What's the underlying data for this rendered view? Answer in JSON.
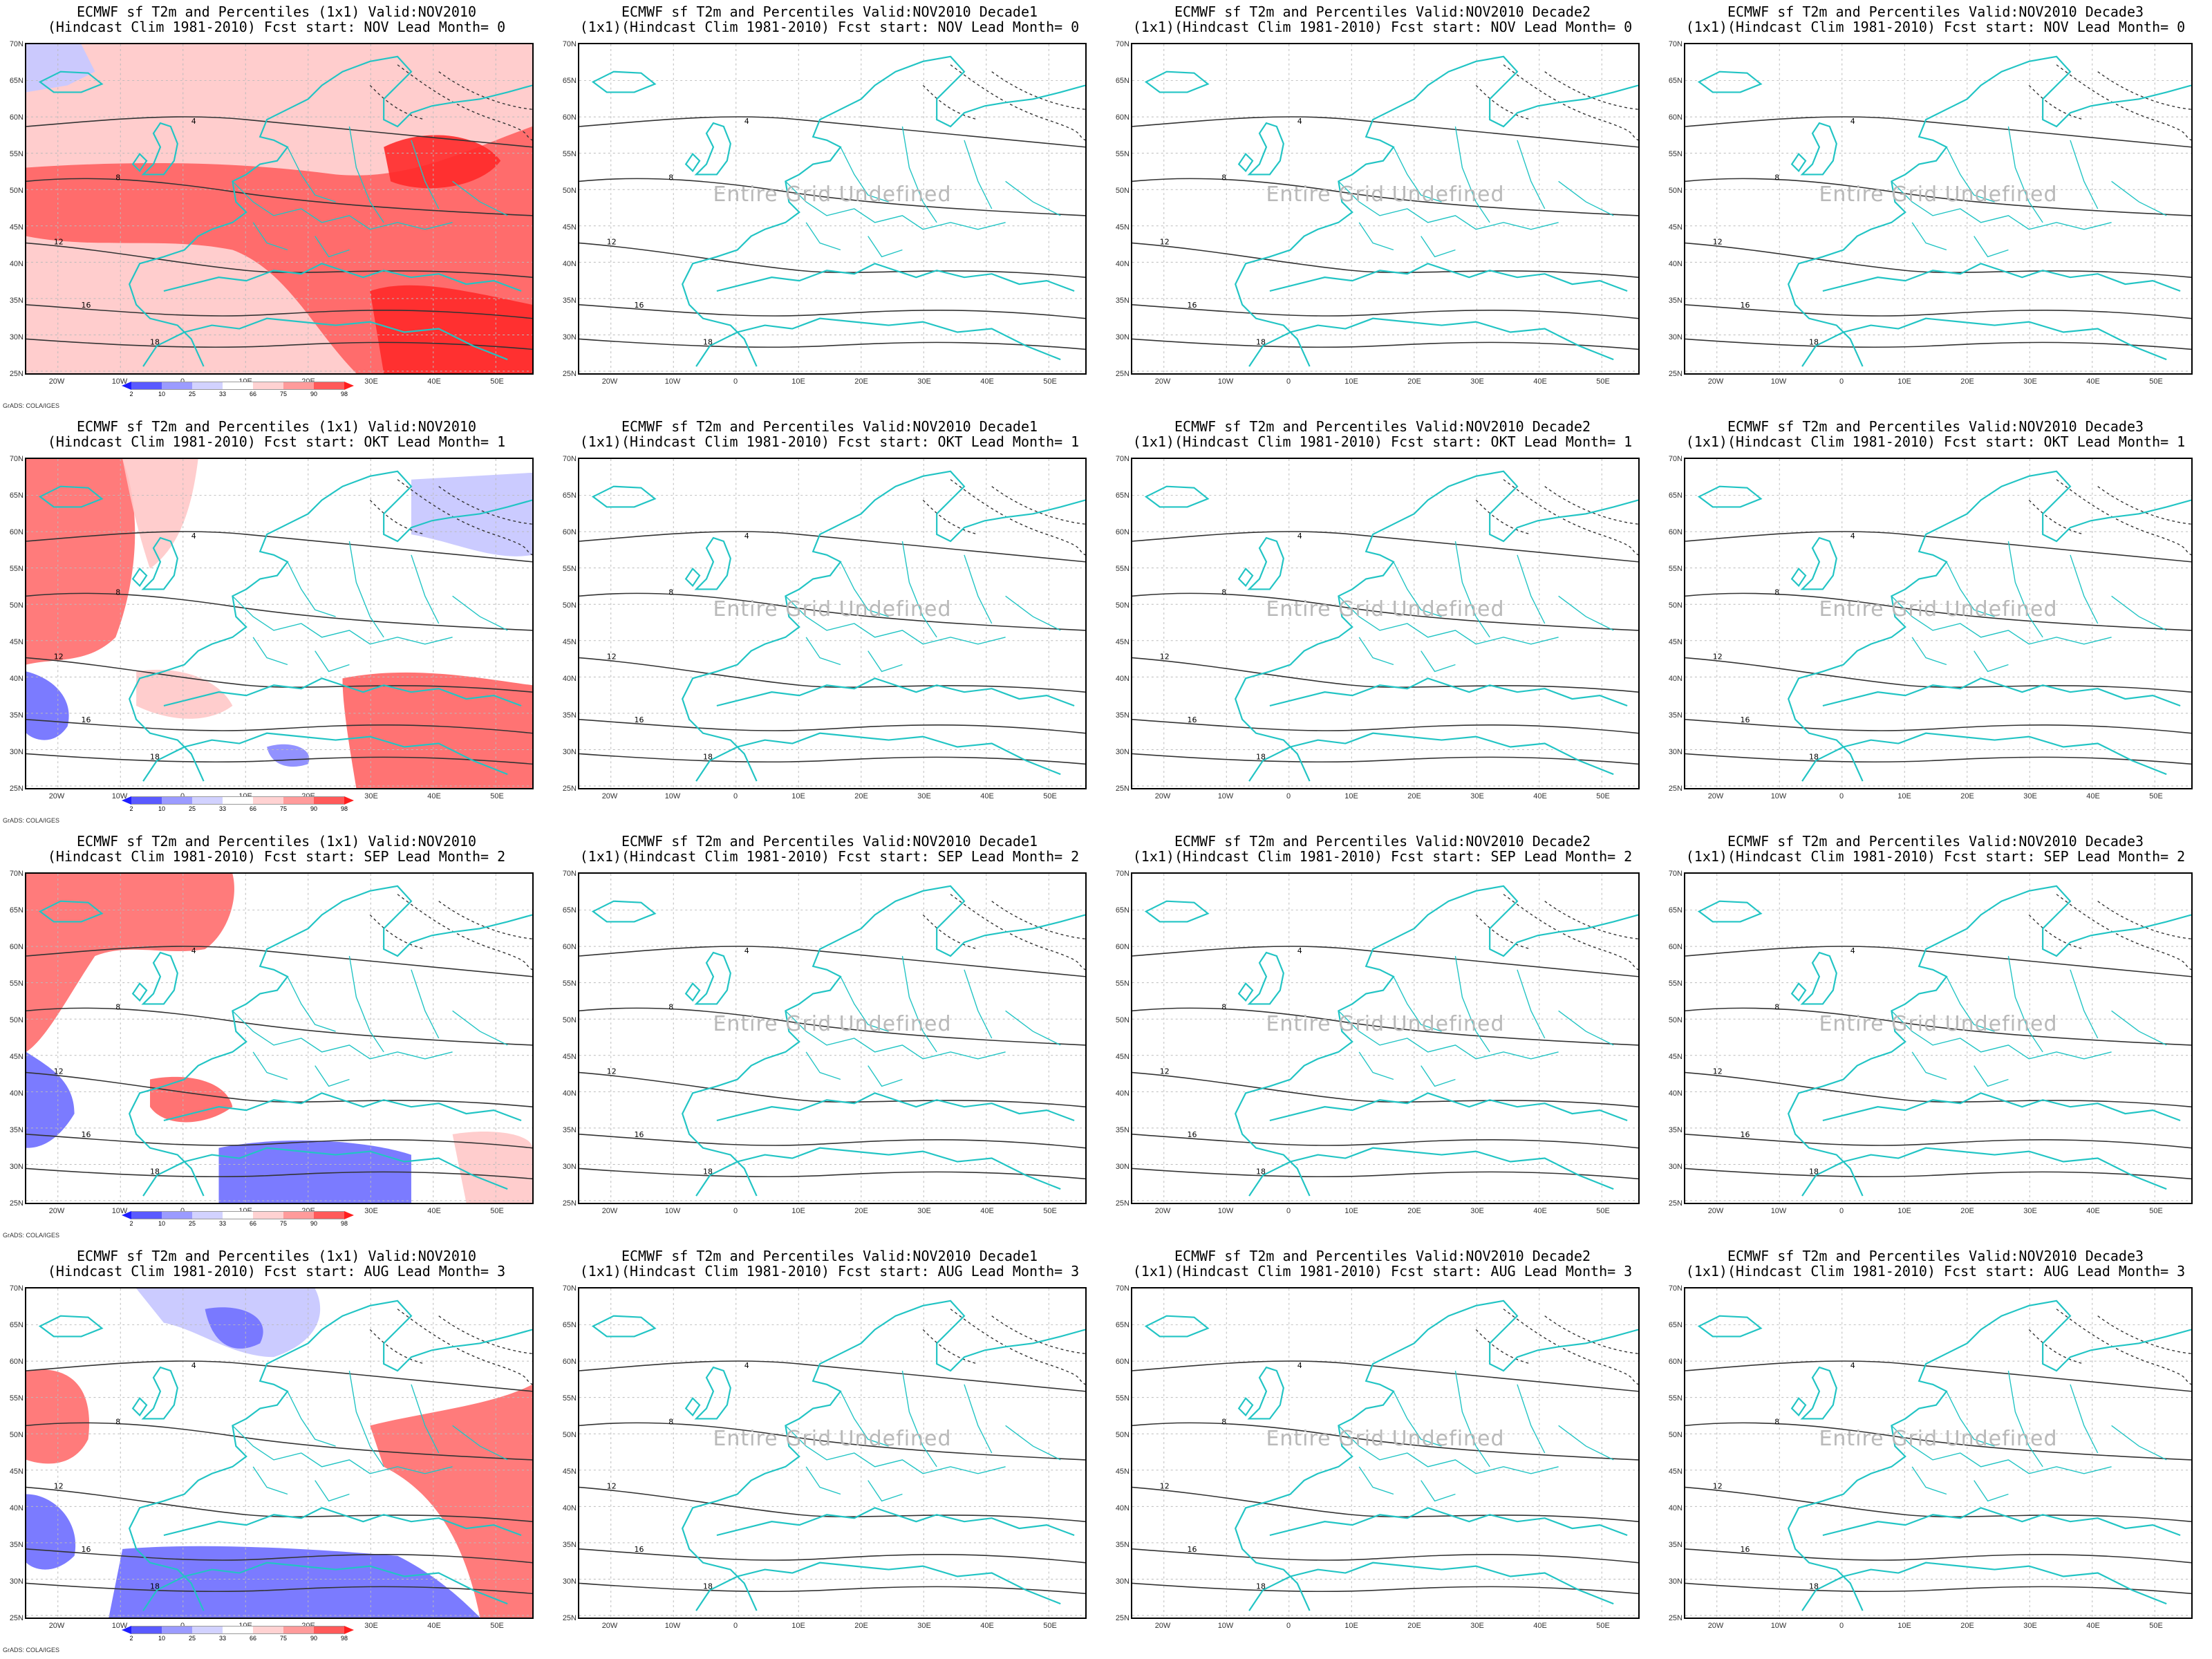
{
  "panel_titles": [
    [
      "ECMWF sf T2m and Percentiles (1x1) Valid:NOV2010",
      "(Hindcast Clim 1981-2010) Fcst start: NOV  Lead Month= 0"
    ],
    [
      "ECMWF sf T2m and Percentiles Valid:NOV2010 Decade1",
      "(1x1)(Hindcast Clim 1981-2010) Fcst start: NOV  Lead Month= 0"
    ],
    [
      "ECMWF sf T2m and Percentiles Valid:NOV2010 Decade2",
      "(1x1)(Hindcast Clim 1981-2010) Fcst start: NOV  Lead Month= 0"
    ],
    [
      "ECMWF sf T2m and Percentiles Valid:NOV2010 Decade3",
      "(1x1)(Hindcast Clim 1981-2010) Fcst start: NOV  Lead Month= 0"
    ],
    [
      "ECMWF sf T2m and Percentiles (1x1) Valid:NOV2010",
      "(Hindcast Clim 1981-2010) Fcst start: OKT  Lead Month= 1"
    ],
    [
      "ECMWF sf T2m and Percentiles Valid:NOV2010 Decade1",
      "(1x1)(Hindcast Clim 1981-2010) Fcst start: OKT  Lead Month= 1"
    ],
    [
      "ECMWF sf T2m and Percentiles Valid:NOV2010 Decade2",
      "(1x1)(Hindcast Clim 1981-2010) Fcst start: OKT  Lead Month= 1"
    ],
    [
      "ECMWF sf T2m and Percentiles Valid:NOV2010 Decade3",
      "(1x1)(Hindcast Clim 1981-2010) Fcst start: OKT  Lead Month= 1"
    ],
    [
      "ECMWF sf T2m and Percentiles (1x1) Valid:NOV2010",
      "(Hindcast Clim 1981-2010) Fcst start: SEP  Lead Month= 2"
    ],
    [
      "ECMWF sf T2m and Percentiles Valid:NOV2010 Decade1",
      "(1x1)(Hindcast Clim 1981-2010) Fcst start: SEP  Lead Month= 2"
    ],
    [
      "ECMWF sf T2m and Percentiles Valid:NOV2010 Decade2",
      "(1x1)(Hindcast Clim 1981-2010) Fcst start: SEP  Lead Month= 2"
    ],
    [
      "ECMWF sf T2m and Percentiles Valid:NOV2010 Decade3",
      "(1x1)(Hindcast Clim 1981-2010) Fcst start: SEP  Lead Month= 2"
    ],
    [
      "ECMWF sf T2m and Percentiles (1x1) Valid:NOV2010",
      "(Hindcast Clim 1981-2010) Fcst start: AUG  Lead Month= 3"
    ],
    [
      "ECMWF sf T2m and Percentiles Valid:NOV2010 Decade1",
      "(1x1)(Hindcast Clim 1981-2010) Fcst start: AUG  Lead Month= 3"
    ],
    [
      "ECMWF sf T2m and Percentiles Valid:NOV2010 Decade2",
      "(1x1)(Hindcast Clim 1981-2010) Fcst start: AUG  Lead Month= 3"
    ],
    [
      "ECMWF sf T2m and Percentiles Valid:NOV2010 Decade3",
      "(1x1)(Hindcast Clim 1981-2010) Fcst start: AUG  Lead Month= 3"
    ]
  ],
  "undefined_text": "Entire Grid Undefined",
  "lat_labels": [
    "70N",
    "65N",
    "60N",
    "55N",
    "50N",
    "45N",
    "40N",
    "35N",
    "30N",
    "25N"
  ],
  "lon_labels": [
    "20W",
    "10W",
    "0",
    "10E",
    "20E",
    "30E",
    "40E",
    "50E"
  ],
  "credit": "GrADS: COLA/IGES",
  "colorbar": {
    "ticks": [
      "2",
      "10",
      "25",
      "33",
      "66",
      "75",
      "90",
      "98"
    ],
    "colors": [
      "#1e1eff",
      "#5a5aff",
      "#9b9bff",
      "#d2d2ff",
      "#ffffff",
      "#ffd2d2",
      "#ff9b9b",
      "#ff5a5a",
      "#ff1e1e"
    ]
  },
  "colors": {
    "coast": "#22c4c4",
    "contour": "#333333",
    "warm": "#ff5a5a",
    "warm_light": "#ffc8c8",
    "cold": "#6464ff",
    "cold_light": "#c8c8ff"
  },
  "contour_labels": [
    "4",
    "8",
    "12",
    "16",
    "18"
  ]
}
